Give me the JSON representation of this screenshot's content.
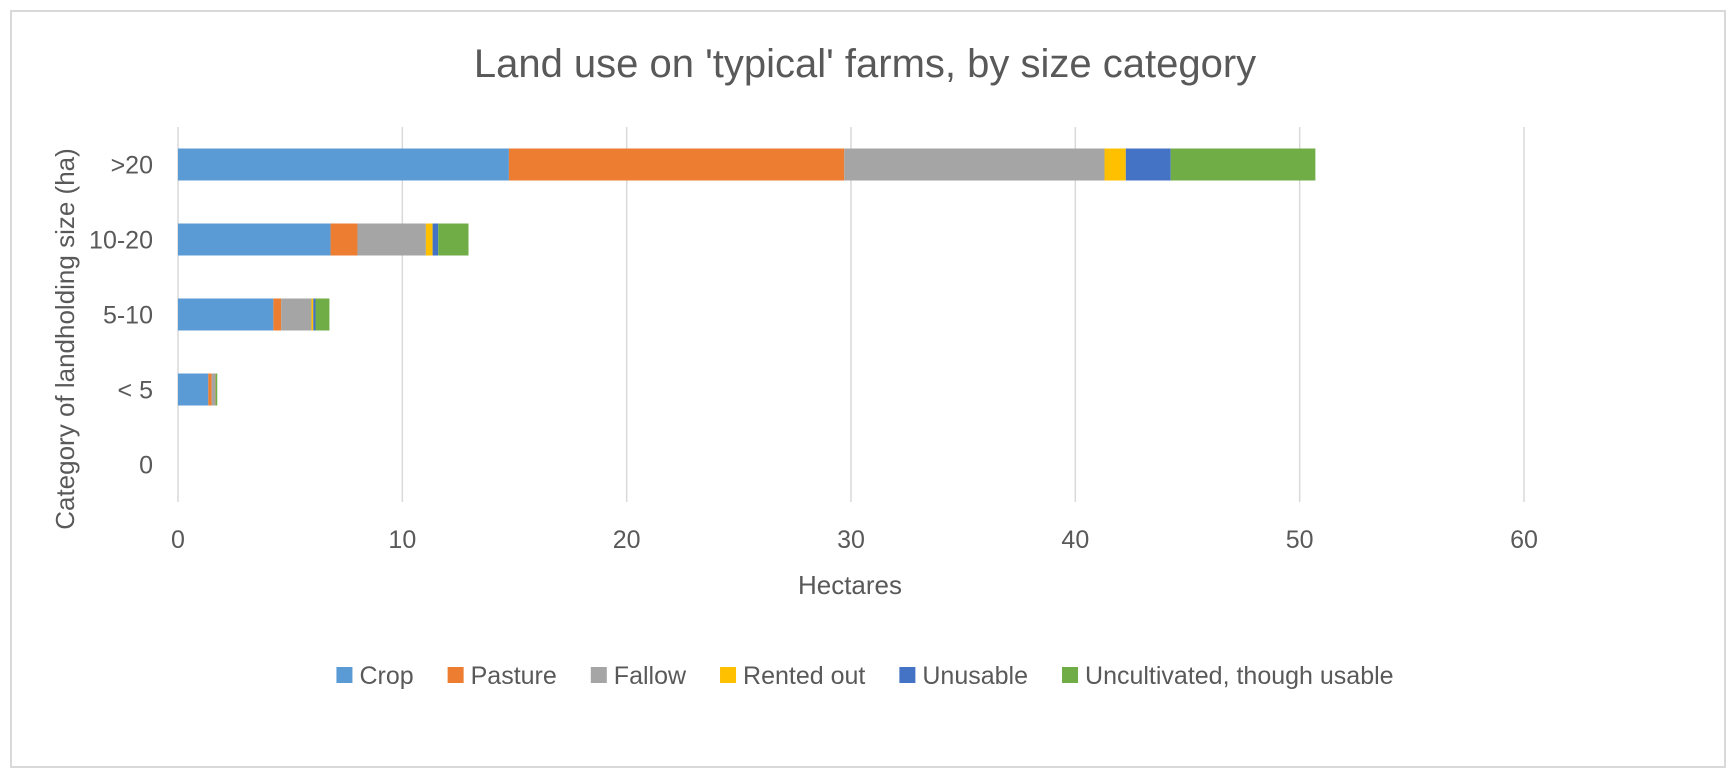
{
  "chart_data": {
    "type": "bar",
    "orientation": "horizontal",
    "stacked": true,
    "title": "Land use on 'typical' farms, by size category",
    "xlabel": "Hectares",
    "ylabel": "Category of landholding size (ha)",
    "xlim": [
      0,
      60
    ],
    "x_ticks": [
      "0",
      "10",
      "20",
      "30",
      "40",
      "50",
      "60"
    ],
    "gridlines": "vertical",
    "legend_position": "bottom",
    "categories": [
      "0",
      "< 5",
      "5-10",
      "10-20",
      ">20"
    ],
    "series": [
      {
        "name": "Crop",
        "color": "#5b9bd5",
        "values": [
          0,
          1.35,
          4.25,
          6.8,
          14.75
        ]
      },
      {
        "name": "Pasture",
        "color": "#ed7d31",
        "values": [
          0,
          0.15,
          0.35,
          1.2,
          14.95
        ]
      },
      {
        "name": "Fallow",
        "color": "#a5a5a5",
        "values": [
          0,
          0.15,
          1.35,
          3.05,
          11.6
        ]
      },
      {
        "name": "Rented out",
        "color": "#ffc000",
        "values": [
          0,
          0.02,
          0.08,
          0.3,
          0.95
        ]
      },
      {
        "name": "Unusable",
        "color": "#4472c4",
        "values": [
          0,
          0.02,
          0.1,
          0.25,
          2.0
        ]
      },
      {
        "name": "Uncultivated, though usable",
        "color": "#70ad47",
        "values": [
          0,
          0.06,
          0.62,
          1.35,
          6.45
        ]
      }
    ]
  }
}
